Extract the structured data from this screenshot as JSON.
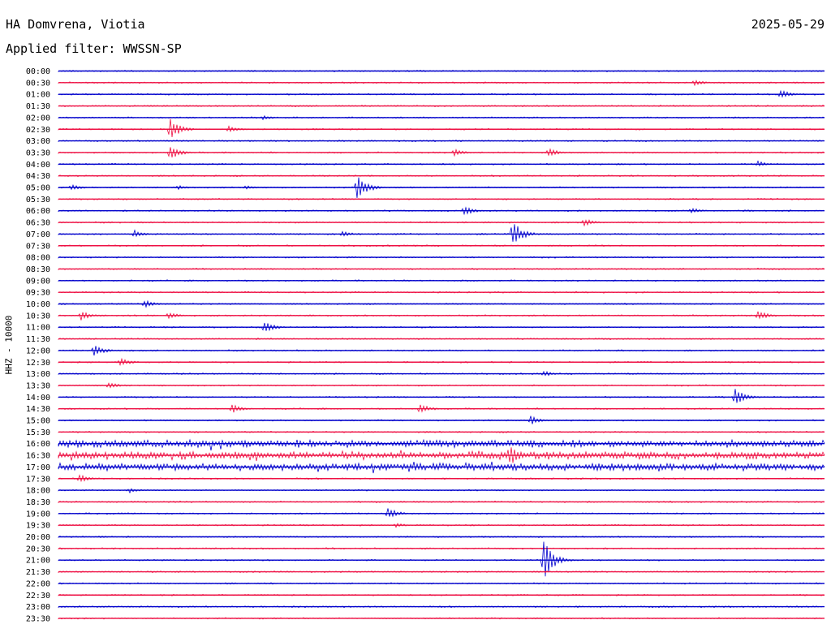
{
  "header": {
    "station": "HA Domvrena, Viotia",
    "date": "2025-05-29",
    "filter_text": "Applied filter: WWSSN-SP"
  },
  "chart_data": {
    "type": "line",
    "title": "HA Domvrena, Viotia",
    "ylabel": "HHZ - 10000",
    "rows": [
      "00:00",
      "00:30",
      "01:00",
      "01:30",
      "02:00",
      "02:30",
      "03:00",
      "03:30",
      "04:00",
      "04:30",
      "05:00",
      "05:30",
      "06:00",
      "06:30",
      "07:00",
      "07:30",
      "08:00",
      "08:30",
      "09:00",
      "09:30",
      "10:00",
      "10:30",
      "11:00",
      "11:30",
      "12:00",
      "12:30",
      "13:00",
      "13:30",
      "14:00",
      "14:30",
      "15:00",
      "15:30",
      "16:00",
      "16:30",
      "17:00",
      "17:30",
      "18:00",
      "18:30",
      "19:00",
      "19:30",
      "20:00",
      "20:30",
      "21:00",
      "21:30",
      "22:00",
      "22:30",
      "23:00",
      "23:30"
    ],
    "colors": [
      "#0000cc",
      "#ee1144"
    ],
    "x_minutes": [
      0,
      30
    ],
    "events": [
      {
        "row": 1,
        "minute": 24.9,
        "amp": 4
      },
      {
        "row": 2,
        "minute": 28.3,
        "amp": 6
      },
      {
        "row": 4,
        "minute": 8.0,
        "amp": 3
      },
      {
        "row": 5,
        "minute": 4.4,
        "amp": 14
      },
      {
        "row": 5,
        "minute": 6.7,
        "amp": 5
      },
      {
        "row": 7,
        "minute": 4.4,
        "amp": 9
      },
      {
        "row": 7,
        "minute": 15.5,
        "amp": 5
      },
      {
        "row": 7,
        "minute": 19.2,
        "amp": 6
      },
      {
        "row": 8,
        "minute": 27.4,
        "amp": 4
      },
      {
        "row": 10,
        "minute": 11.7,
        "amp": 18
      },
      {
        "row": 10,
        "minute": 0.5,
        "amp": 4
      },
      {
        "row": 10,
        "minute": 4.7,
        "amp": 3
      },
      {
        "row": 10,
        "minute": 7.3,
        "amp": 3
      },
      {
        "row": 12,
        "minute": 15.9,
        "amp": 6
      },
      {
        "row": 12,
        "minute": 24.8,
        "amp": 4
      },
      {
        "row": 13,
        "minute": 20.6,
        "amp": 5
      },
      {
        "row": 14,
        "minute": 3.0,
        "amp": 5
      },
      {
        "row": 14,
        "minute": 11.1,
        "amp": 4
      },
      {
        "row": 14,
        "minute": 17.8,
        "amp": 17
      },
      {
        "row": 20,
        "minute": 3.4,
        "amp": 5
      },
      {
        "row": 21,
        "minute": 0.9,
        "amp": 6
      },
      {
        "row": 21,
        "minute": 4.3,
        "amp": 5
      },
      {
        "row": 21,
        "minute": 27.4,
        "amp": 7
      },
      {
        "row": 22,
        "minute": 8.1,
        "amp": 8
      },
      {
        "row": 24,
        "minute": 1.4,
        "amp": 8
      },
      {
        "row": 25,
        "minute": 2.4,
        "amp": 6
      },
      {
        "row": 26,
        "minute": 19.0,
        "amp": 4
      },
      {
        "row": 27,
        "minute": 2.0,
        "amp": 5
      },
      {
        "row": 28,
        "minute": 26.5,
        "amp": 12
      },
      {
        "row": 29,
        "minute": 6.8,
        "amp": 6
      },
      {
        "row": 29,
        "minute": 14.2,
        "amp": 7
      },
      {
        "row": 30,
        "minute": 18.5,
        "amp": 6
      },
      {
        "row": 33,
        "minute": 17.7,
        "amp": 14
      },
      {
        "row": 35,
        "minute": 0.8,
        "amp": 6
      },
      {
        "row": 36,
        "minute": 2.8,
        "amp": 3
      },
      {
        "row": 38,
        "minute": 12.9,
        "amp": 8
      },
      {
        "row": 39,
        "minute": 13.2,
        "amp": 3
      },
      {
        "row": 42,
        "minute": 19.0,
        "amp": 26
      }
    ],
    "noisy_rows": [
      32,
      33,
      34
    ],
    "grid": false
  }
}
